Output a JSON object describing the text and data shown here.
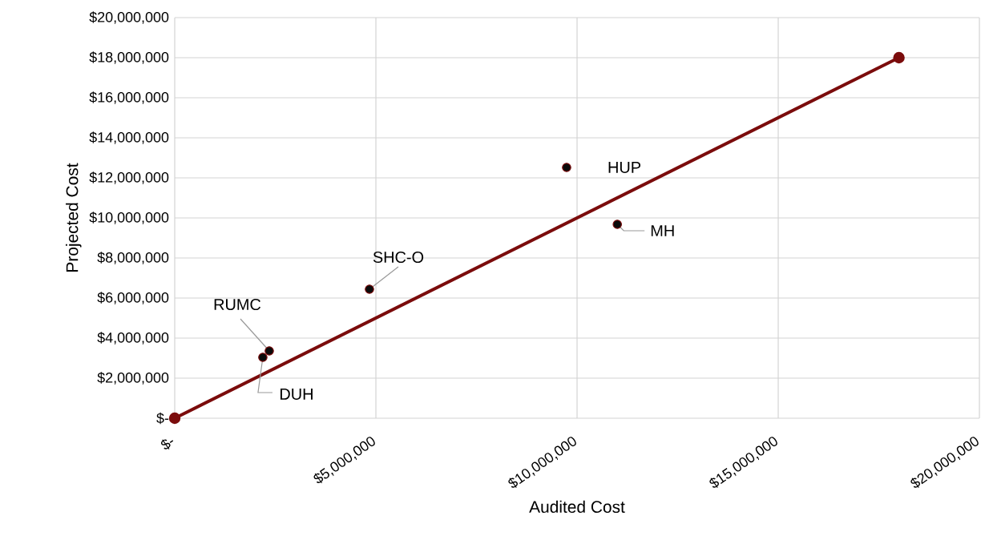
{
  "chart_data": {
    "type": "scatter",
    "xlabel": "Audited Cost",
    "ylabel": "Projected Cost",
    "xlim": [
      0,
      20000000
    ],
    "ylim": [
      0,
      20000000
    ],
    "xticks": [
      {
        "value": 0,
        "label": "$-"
      },
      {
        "value": 5000000,
        "label": "$5,000,000"
      },
      {
        "value": 10000000,
        "label": "$10,000,000"
      },
      {
        "value": 15000000,
        "label": "$15,000,000"
      },
      {
        "value": 20000000,
        "label": "$20,000,000"
      }
    ],
    "yticks": [
      {
        "value": 0,
        "label": "$-"
      },
      {
        "value": 2000000,
        "label": "$2,000,000"
      },
      {
        "value": 4000000,
        "label": "$4,000,000"
      },
      {
        "value": 6000000,
        "label": "$6,000,000"
      },
      {
        "value": 8000000,
        "label": "$8,000,000"
      },
      {
        "value": 10000000,
        "label": "$10,000,000"
      },
      {
        "value": 12000000,
        "label": "$12,000,000"
      },
      {
        "value": 14000000,
        "label": "$14,000,000"
      },
      {
        "value": 16000000,
        "label": "$16,000,000"
      },
      {
        "value": 18000000,
        "label": "$18,000,000"
      },
      {
        "value": 20000000,
        "label": "$20,000,000"
      }
    ],
    "grid": true,
    "marker": "circle",
    "series": [
      {
        "type": "scatter",
        "color": "#0a0a0a",
        "x": [
          2350000,
          2190000,
          4840000,
          9740000,
          11000000
        ],
        "values": [
          3360000,
          3040000,
          6440000,
          12520000,
          9680000
        ]
      },
      {
        "type": "line",
        "color": "#7b0c0c",
        "x": [
          0,
          18000000
        ],
        "values": [
          0,
          18000000
        ]
      }
    ],
    "annotations": [
      {
        "text": "RUMC",
        "x": 2350000,
        "y": 3360000
      },
      {
        "text": "DUH",
        "x": 2190000,
        "y": 3040000
      },
      {
        "text": "SHC-O",
        "x": 4840000,
        "y": 6440000
      },
      {
        "text": "HUP",
        "x": 9740000,
        "y": 12520000
      },
      {
        "text": "MH",
        "x": 11000000,
        "y": 9680000
      }
    ]
  }
}
